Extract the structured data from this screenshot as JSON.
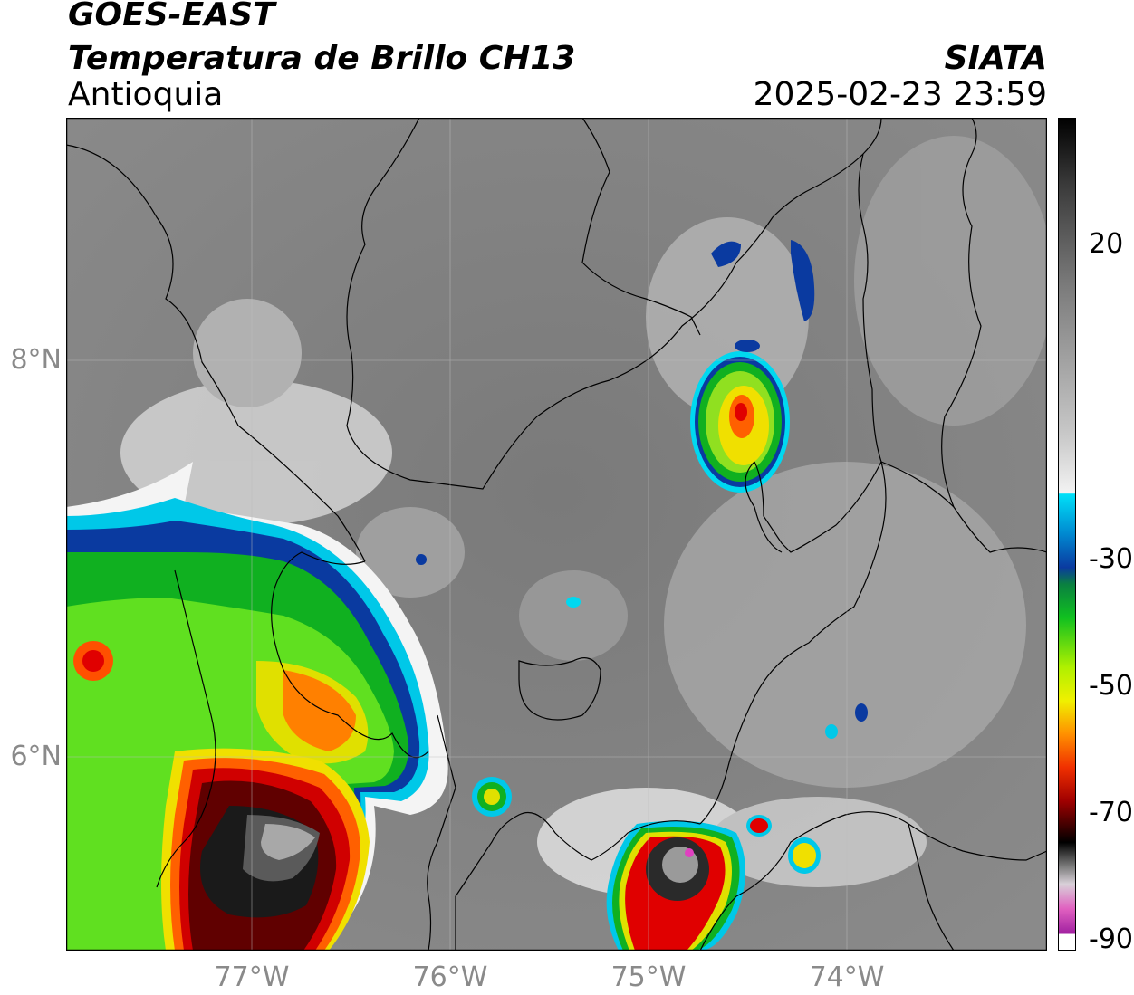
{
  "header": {
    "satellite": "GOES-EAST",
    "product": "Temperatura de Brillo CH13",
    "region": "Antioquia",
    "organization": "SIATA",
    "datetime": "2025-02-23 23:59"
  },
  "map": {
    "latitude_labels": [
      "8°N",
      "6°N"
    ],
    "longitude_labels": [
      "77°W",
      "76°W",
      "75°W",
      "74°W"
    ]
  },
  "colorbar": {
    "tick_labels": [
      "20",
      "-30",
      "-50",
      "-70",
      "-90"
    ],
    "colors": {
      "warm_gray": "#6e6e6e",
      "light": "#f0f0f0",
      "cyan": "#00d8f0",
      "blue": "#0a3aa0",
      "green": "#10c020",
      "yellow": "#f0f000",
      "orange": "#ff8000",
      "red": "#e00000",
      "darkred": "#5a0000",
      "black": "#000000",
      "magenta": "#e040c0"
    }
  }
}
